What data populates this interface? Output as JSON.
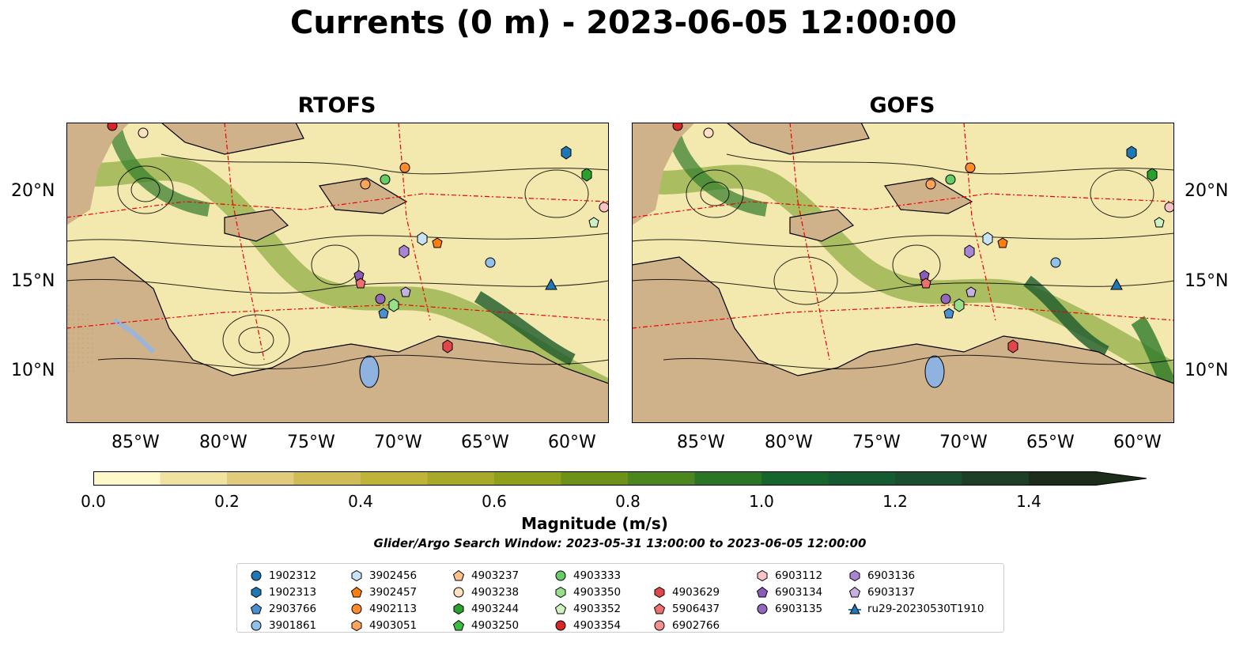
{
  "title": "Currents (0 m) - 2023-06-05 12:00:00",
  "panels": [
    {
      "name": "RTOFS"
    },
    {
      "name": "GOFS"
    }
  ],
  "axes": {
    "lon_ticks": [
      "85°W",
      "80°W",
      "75°W",
      "70°W",
      "65°W",
      "60°W"
    ],
    "lat_ticks": [
      "20°N",
      "15°N",
      "10°N"
    ]
  },
  "colorbar": {
    "label": "Magnitude (m/s)",
    "ticks": [
      "0.0",
      "0.2",
      "0.4",
      "0.6",
      "0.8",
      "1.0",
      "1.2",
      "1.4"
    ],
    "colors": [
      "#fff8c8",
      "#f0e2a0",
      "#e0cc7a",
      "#d0bc56",
      "#bfb338",
      "#a8a82a",
      "#8ea01a",
      "#6e9218",
      "#4c861e",
      "#2a7626",
      "#15652c",
      "#155a30",
      "#1b4e2e",
      "#1e3f25",
      "#1c2d1a"
    ],
    "land_color": "#cfb18a"
  },
  "search_window": "Glider/Argo Search Window: 2023-05-31 13:00:00 to 2023-06-05 12:00:00",
  "legend": [
    {
      "id": "1902312",
      "shape": "circle",
      "color": "#1f77b4"
    },
    {
      "id": "1902313",
      "shape": "hexagon",
      "color": "#1f77b4"
    },
    {
      "id": "2903766",
      "shape": "pentagon",
      "color": "#4a8fd0"
    },
    {
      "id": "3901861",
      "shape": "circle",
      "color": "#8fc1ea"
    },
    {
      "id": "3902456",
      "shape": "hexagon",
      "color": "#c7e3f5"
    },
    {
      "id": "3902457",
      "shape": "pentagon",
      "color": "#ff7f0e"
    },
    {
      "id": "4902113",
      "shape": "circle",
      "color": "#ff8c2a"
    },
    {
      "id": "4903051",
      "shape": "hexagon",
      "color": "#ffa55a"
    },
    {
      "id": "4903237",
      "shape": "pentagon",
      "color": "#ffc08a"
    },
    {
      "id": "4903238",
      "shape": "circle",
      "color": "#ffe0c0"
    },
    {
      "id": "4903244",
      "shape": "hexagon",
      "color": "#2ca02c"
    },
    {
      "id": "4903250",
      "shape": "pentagon",
      "color": "#3dbb3d"
    },
    {
      "id": "4903333",
      "shape": "circle",
      "color": "#66cc66"
    },
    {
      "id": "4903350",
      "shape": "hexagon",
      "color": "#98df8a"
    },
    {
      "id": "4903352",
      "shape": "pentagon",
      "color": "#cdf2c0"
    },
    {
      "id": "4903354",
      "shape": "circle",
      "color": "#d62728"
    },
    {
      "id": "4903629",
      "shape": "hexagon",
      "color": "#e0474a"
    },
    {
      "id": "5906437",
      "shape": "pentagon",
      "color": "#ee6f70"
    },
    {
      "id": "6902766",
      "shape": "circle",
      "color": "#f4908f"
    },
    {
      "id": "6903112",
      "shape": "hexagon",
      "color": "#f9c3c3"
    },
    {
      "id": "6903134",
      "shape": "pentagon",
      "color": "#8a5cb8"
    },
    {
      "id": "6903135",
      "shape": "circle",
      "color": "#9467bd"
    },
    {
      "id": "6903136",
      "shape": "hexagon",
      "color": "#a884d4"
    },
    {
      "id": "6903137",
      "shape": "pentagon",
      "color": "#c5b0e0"
    },
    {
      "id": "ru29-20230530T1910",
      "shape": "triangle",
      "color": "#1f77b4"
    }
  ]
}
